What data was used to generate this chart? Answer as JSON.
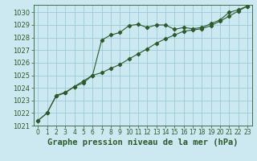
{
  "title": "Graphe pression niveau de la mer (hPa)",
  "bg_color": "#cce8f0",
  "grid_color": "#99ccd8",
  "line_color": "#2d5a2d",
  "xlim": [
    -0.5,
    23.5
  ],
  "ylim": [
    1021.0,
    1030.6
  ],
  "xticks": [
    0,
    1,
    2,
    3,
    4,
    5,
    6,
    7,
    8,
    9,
    10,
    11,
    12,
    13,
    14,
    15,
    16,
    17,
    18,
    19,
    20,
    21,
    22,
    23
  ],
  "yticks": [
    1021,
    1022,
    1023,
    1024,
    1025,
    1026,
    1027,
    1028,
    1029,
    1030
  ],
  "series1_x": [
    0,
    1,
    2,
    3,
    4,
    5,
    6,
    7,
    8,
    9,
    10,
    11,
    12,
    13,
    14,
    15,
    16,
    17,
    18,
    19,
    20,
    21,
    22,
    23
  ],
  "series1_y": [
    1021.4,
    1022.0,
    1023.4,
    1023.65,
    1024.1,
    1024.55,
    1025.0,
    1027.8,
    1028.2,
    1028.4,
    1028.95,
    1029.05,
    1028.8,
    1029.0,
    1029.0,
    1028.65,
    1028.8,
    1028.7,
    1028.8,
    1029.1,
    1029.4,
    1030.0,
    1030.2,
    1030.5
  ],
  "series2_x": [
    0,
    1,
    2,
    3,
    4,
    5,
    6,
    7,
    8,
    9,
    10,
    11,
    12,
    13,
    14,
    15,
    16,
    17,
    18,
    19,
    20,
    21,
    22,
    23
  ],
  "series2_y": [
    1021.4,
    1022.0,
    1023.35,
    1023.6,
    1024.1,
    1024.4,
    1025.0,
    1025.2,
    1025.55,
    1025.85,
    1026.3,
    1026.7,
    1027.1,
    1027.55,
    1027.9,
    1028.2,
    1028.5,
    1028.6,
    1028.7,
    1028.95,
    1029.3,
    1029.7,
    1030.1,
    1030.5
  ],
  "title_fontsize": 7.5,
  "tick_fontsize": 6.0
}
